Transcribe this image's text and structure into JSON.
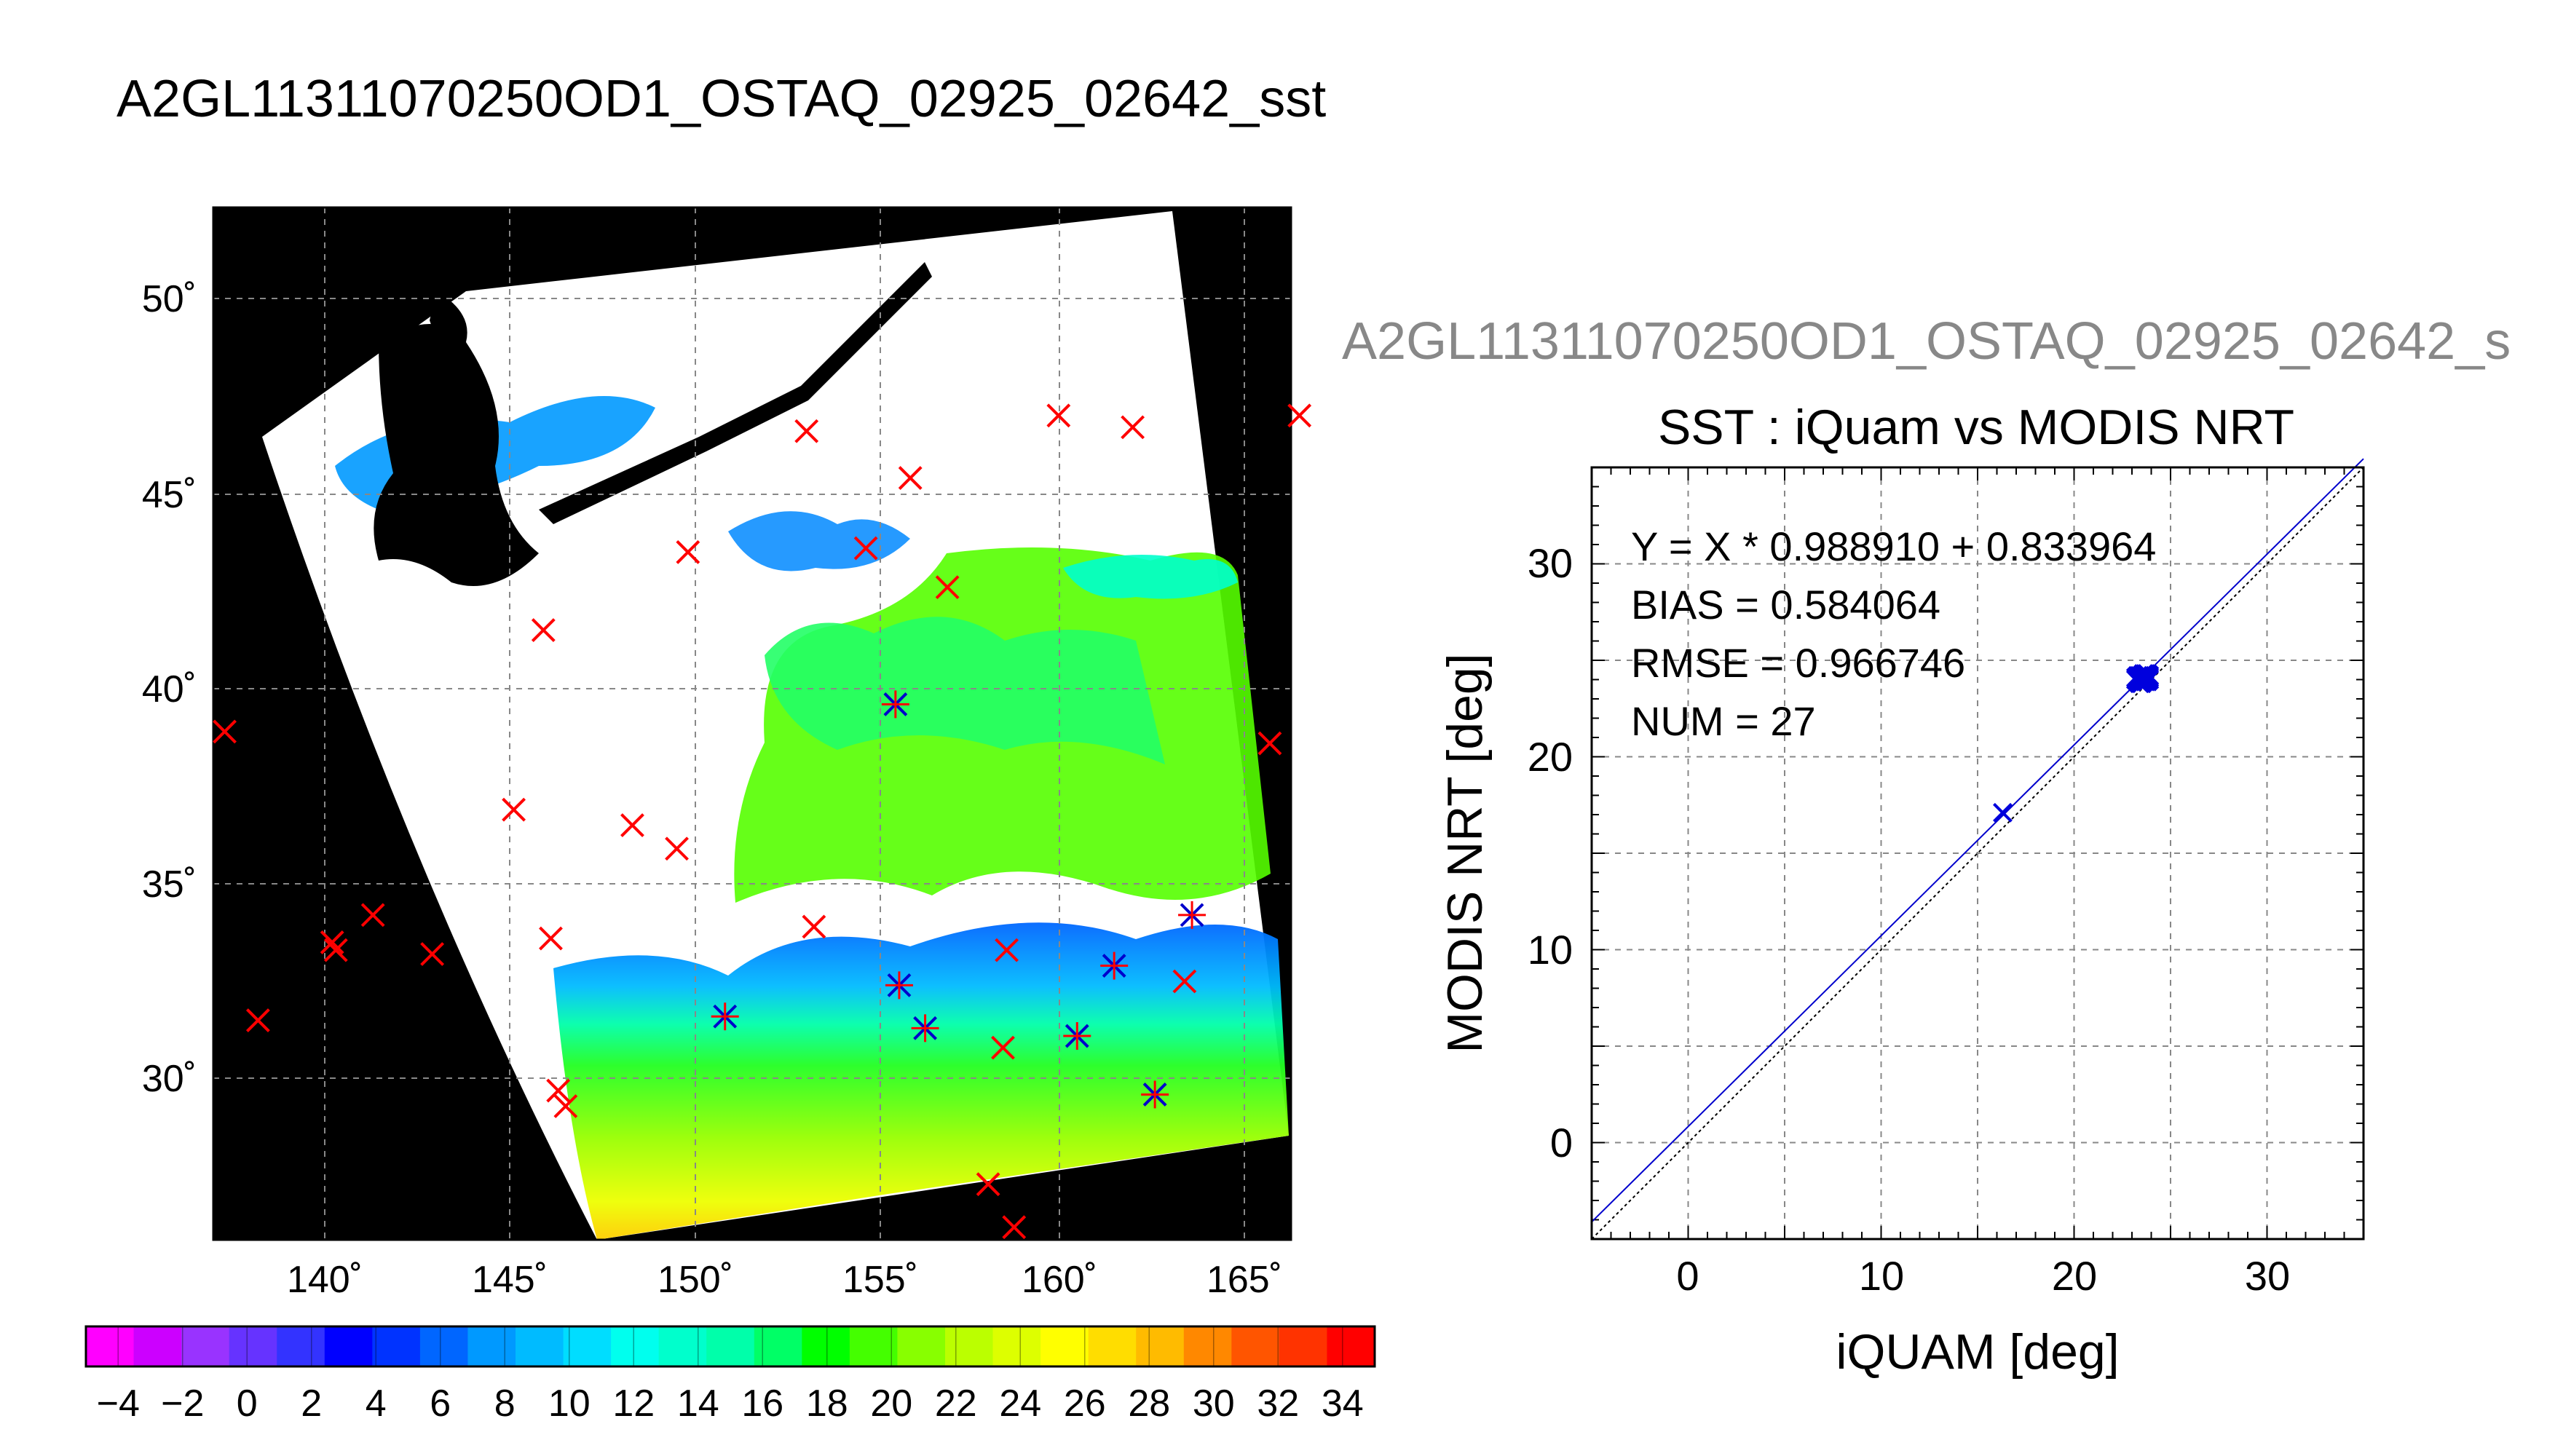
{
  "page_title": "A2GL11311070250OD1_OSTAQ_02925_02642_sst",
  "scatter_header": "A2GL11311070250OD1_OSTAQ_02925_02642_s",
  "chart_data": [
    {
      "type": "map",
      "lon_ticks": [
        "140˚",
        "145˚",
        "150˚",
        "155˚",
        "160˚",
        "165˚"
      ],
      "lat_ticks": [
        "50˚",
        "45˚",
        "40˚",
        "35˚",
        "30˚"
      ],
      "lon_range": [
        137.2,
        166.3
      ],
      "lat_range": [
        25.9,
        52.4
      ],
      "grid": true,
      "markers": [
        {
          "lon": 138.2,
          "lat": 31.5,
          "match": false
        },
        {
          "lon": 137.3,
          "lat": 38.9,
          "match": false
        },
        {
          "lon": 140.2,
          "lat": 33.5,
          "match": false
        },
        {
          "lon": 140.3,
          "lat": 33.3,
          "match": false
        },
        {
          "lon": 141.3,
          "lat": 34.2,
          "match": false
        },
        {
          "lon": 142.9,
          "lat": 33.2,
          "match": false
        },
        {
          "lon": 145.1,
          "lat": 36.9,
          "match": false
        },
        {
          "lon": 146.1,
          "lat": 33.6,
          "match": false
        },
        {
          "lon": 146.3,
          "lat": 29.7,
          "match": false
        },
        {
          "lon": 146.5,
          "lat": 29.3,
          "match": false
        },
        {
          "lon": 145.9,
          "lat": 41.5,
          "match": false
        },
        {
          "lon": 148.3,
          "lat": 36.5,
          "match": false
        },
        {
          "lon": 149.5,
          "lat": 35.9,
          "match": false
        },
        {
          "lon": 149.8,
          "lat": 43.5,
          "match": false
        },
        {
          "lon": 150.8,
          "lat": 31.6,
          "match": true
        },
        {
          "lon": 153.0,
          "lat": 46.6,
          "match": false
        },
        {
          "lon": 153.2,
          "lat": 33.9,
          "match": false
        },
        {
          "lon": 154.6,
          "lat": 43.6,
          "match": false
        },
        {
          "lon": 155.4,
          "lat": 39.6,
          "match": true
        },
        {
          "lon": 155.5,
          "lat": 32.4,
          "match": true
        },
        {
          "lon": 155.8,
          "lat": 45.4,
          "match": false
        },
        {
          "lon": 156.2,
          "lat": 31.3,
          "match": true
        },
        {
          "lon": 156.8,
          "lat": 42.6,
          "match": false
        },
        {
          "lon": 157.9,
          "lat": 27.3,
          "match": false
        },
        {
          "lon": 158.3,
          "lat": 30.8,
          "match": false
        },
        {
          "lon": 158.4,
          "lat": 33.3,
          "match": false
        },
        {
          "lon": 158.6,
          "lat": 26.2,
          "match": false
        },
        {
          "lon": 159.8,
          "lat": 47.0,
          "match": false
        },
        {
          "lon": 160.3,
          "lat": 31.1,
          "match": true
        },
        {
          "lon": 161.3,
          "lat": 32.9,
          "match": true
        },
        {
          "lon": 161.8,
          "lat": 46.7,
          "match": false
        },
        {
          "lon": 162.4,
          "lat": 29.6,
          "match": true
        },
        {
          "lon": 163.2,
          "lat": 32.5,
          "match": false
        },
        {
          "lon": 163.4,
          "lat": 34.2,
          "match": true
        },
        {
          "lon": 165.5,
          "lat": 38.6,
          "match": false
        },
        {
          "lon": 166.3,
          "lat": 47.0,
          "match": false
        }
      ]
    },
    {
      "type": "colorbar",
      "min": -5,
      "max": 35,
      "tick_labels": [
        "−4",
        "−2",
        "0",
        "2",
        "4",
        "6",
        "8",
        "10",
        "12",
        "14",
        "16",
        "18",
        "20",
        "22",
        "24",
        "26",
        "28",
        "30",
        "32",
        "34"
      ],
      "tick_values": [
        -4,
        -2,
        0,
        2,
        4,
        6,
        8,
        10,
        12,
        14,
        16,
        18,
        20,
        22,
        24,
        26,
        28,
        30,
        32,
        34
      ],
      "colors": [
        "#ff00ff",
        "#cc00ff",
        "#9933ff",
        "#6633ff",
        "#3333ff",
        "#0000ff",
        "#0033ff",
        "#0066ff",
        "#0099ff",
        "#00bbff",
        "#00ddff",
        "#00ffee",
        "#00ffcc",
        "#00ffaa",
        "#00ff66",
        "#00ff00",
        "#44ff00",
        "#88ff00",
        "#bbff00",
        "#ddff00",
        "#ffff00",
        "#ffdd00",
        "#ffbb00",
        "#ff8800",
        "#ff5500",
        "#ff3300",
        "#ff0000"
      ]
    },
    {
      "type": "scatter",
      "title": "SST : iQuam vs MODIS NRT",
      "xlabel": "iQUAM [deg]",
      "ylabel": "MODIS NRT [deg]",
      "xlim": [
        -5,
        35
      ],
      "ylim": [
        -5,
        35
      ],
      "x_ticks": [
        "0",
        "10",
        "20",
        "30"
      ],
      "y_ticks": [
        "0",
        "10",
        "20",
        "30"
      ],
      "grid": true,
      "stats": [
        "Y = X * 0.988910 + 0.833964",
        "BIAS = 0.584064",
        "RMSE = 0.966746",
        "NUM = 27"
      ],
      "fit": {
        "slope": 0.98891,
        "intercept": 0.833964
      },
      "points": [
        [
          16.3,
          17.1
        ],
        [
          23.2,
          24.0
        ],
        [
          23.4,
          23.8
        ],
        [
          23.5,
          24.2
        ],
        [
          23.6,
          24.1
        ],
        [
          23.7,
          23.9
        ],
        [
          23.8,
          24.3
        ],
        [
          23.9,
          24.0
        ],
        [
          23.3,
          23.9
        ],
        [
          23.5,
          23.8
        ],
        [
          23.6,
          24.3
        ],
        [
          23.8,
          24.1
        ],
        [
          23.4,
          24.2
        ],
        [
          23.7,
          24.0
        ],
        [
          23.9,
          24.2
        ],
        [
          23.2,
          24.1
        ],
        [
          23.6,
          23.9
        ],
        [
          23.5,
          24.0
        ],
        [
          23.8,
          23.9
        ],
        [
          23.3,
          24.2
        ],
        [
          23.7,
          24.3
        ],
        [
          23.4,
          23.9
        ],
        [
          23.9,
          24.1
        ],
        [
          23.6,
          24.0
        ],
        [
          23.5,
          24.1
        ],
        [
          23.8,
          24.2
        ],
        [
          23.4,
          24.0
        ]
      ]
    }
  ]
}
